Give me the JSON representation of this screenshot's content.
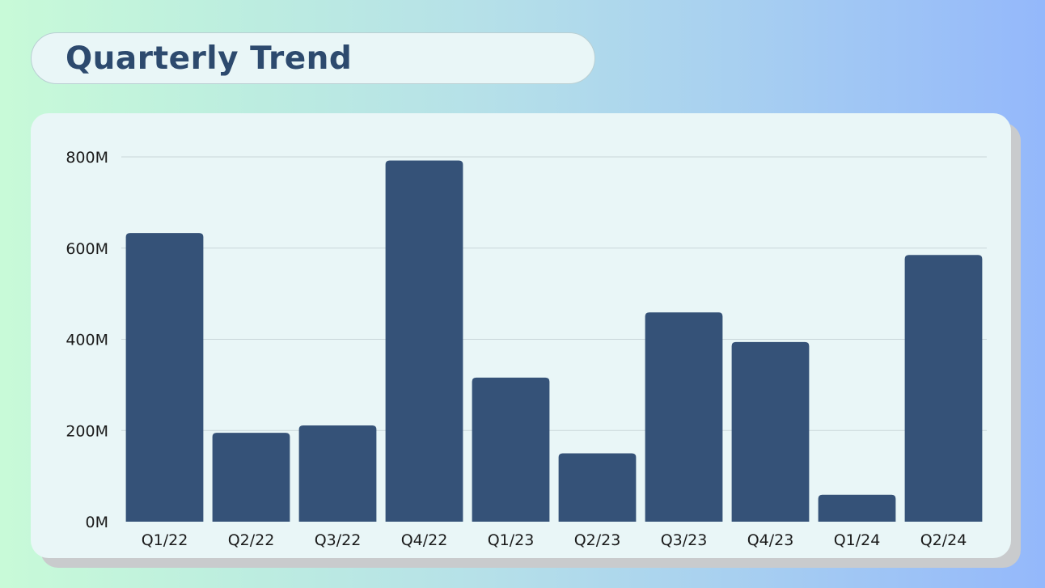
{
  "header": {
    "title": "Quarterly Trend"
  },
  "colors": {
    "bar": "#355278",
    "grid": "#c9d6da",
    "title": "#2d4a6e",
    "card": "#e9f6f7"
  },
  "chart_data": {
    "type": "bar",
    "title": "Quarterly Trend",
    "xlabel": "",
    "ylabel": "",
    "categories": [
      "Q1/22",
      "Q2/22",
      "Q3/22",
      "Q4/22",
      "Q1/23",
      "Q2/23",
      "Q3/23",
      "Q4/23",
      "Q1/24",
      "Q2/24"
    ],
    "values": [
      633,
      195,
      211,
      792,
      316,
      150,
      459,
      394,
      59,
      585
    ],
    "unit": "M",
    "ylim": [
      0,
      800
    ],
    "yticks": [
      0,
      200,
      400,
      600,
      800
    ],
    "ytick_labels": [
      "0M",
      "200M",
      "400M",
      "600M",
      "800M"
    ],
    "grid": true,
    "legend": "none"
  }
}
